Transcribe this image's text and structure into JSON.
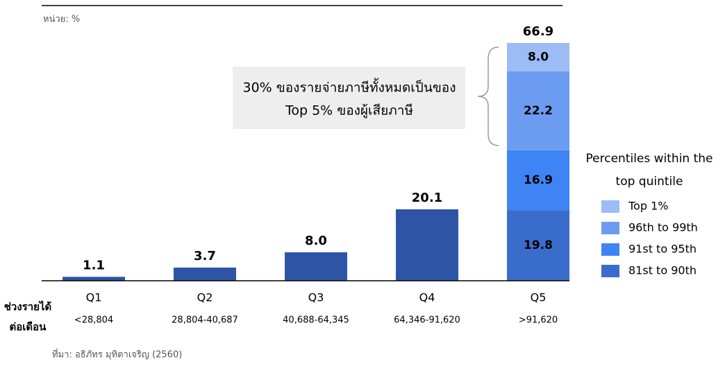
{
  "chart_data": {
    "type": "bar",
    "unit_note": "หน่วย: %",
    "categories": [
      "Q1",
      "Q2",
      "Q3",
      "Q4",
      "Q5"
    ],
    "x_label_lines": [
      "ช่วงรายได้",
      "ต่อเดือน"
    ],
    "income_ranges": [
      "<28,804",
      "28,804-40,687",
      "40,688-64,345",
      "64,346-91,620",
      ">91,620"
    ],
    "values": [
      1.1,
      3.7,
      8.0,
      20.1,
      66.9
    ],
    "value_labels": [
      "1.1",
      "3.7",
      "8.0",
      "20.1",
      "66.9"
    ],
    "color": "#2e55a5",
    "annotation_lines": [
      "30% ของรายจ่ายภาษีทั้งหมดเป็นของ",
      "Top 5% ของผู้เสียภาษี"
    ],
    "top_quintile": {
      "legend_title_lines": [
        "Percentiles within the",
        "top quintile"
      ],
      "series": [
        {
          "name": "Top 1%",
          "color": "#9bbcf5",
          "label_color": "#000000",
          "value": 8.0,
          "value_label": "8.0"
        },
        {
          "name": "96th to 99th",
          "color": "#6b9cf0",
          "label_color": "#ffffff",
          "value": 22.2
        },
        {
          "name": "91st to 95th",
          "color": "#3f84f4",
          "label_color": "#ffffff",
          "value": 16.9
        },
        {
          "name": "81st to 90th",
          "color": "#3a6dcb",
          "label_color": "#ffffff",
          "value": 19.8
        }
      ]
    },
    "source": "ที่มา: อธิภัทร มุทิตาเจริญ (2560)"
  }
}
